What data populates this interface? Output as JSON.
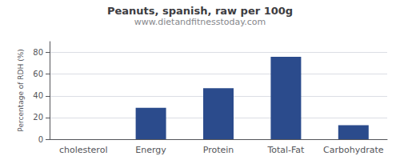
{
  "chart_data": {
    "type": "bar",
    "title": "Peanuts, spanish, raw per 100g",
    "subtitle": "www.dietandfitnesstoday.com",
    "categories": [
      "cholesterol",
      "Energy",
      "Protein",
      "Total-Fat",
      "Carbohydrate"
    ],
    "values": [
      0,
      29,
      47,
      76,
      13
    ],
    "color": "#2b4b8c",
    "ylabel": "Percentage of RDH (%)",
    "ylim": [
      0,
      90
    ],
    "yticks": [
      0,
      20,
      40,
      60,
      80
    ],
    "grid": true
  }
}
